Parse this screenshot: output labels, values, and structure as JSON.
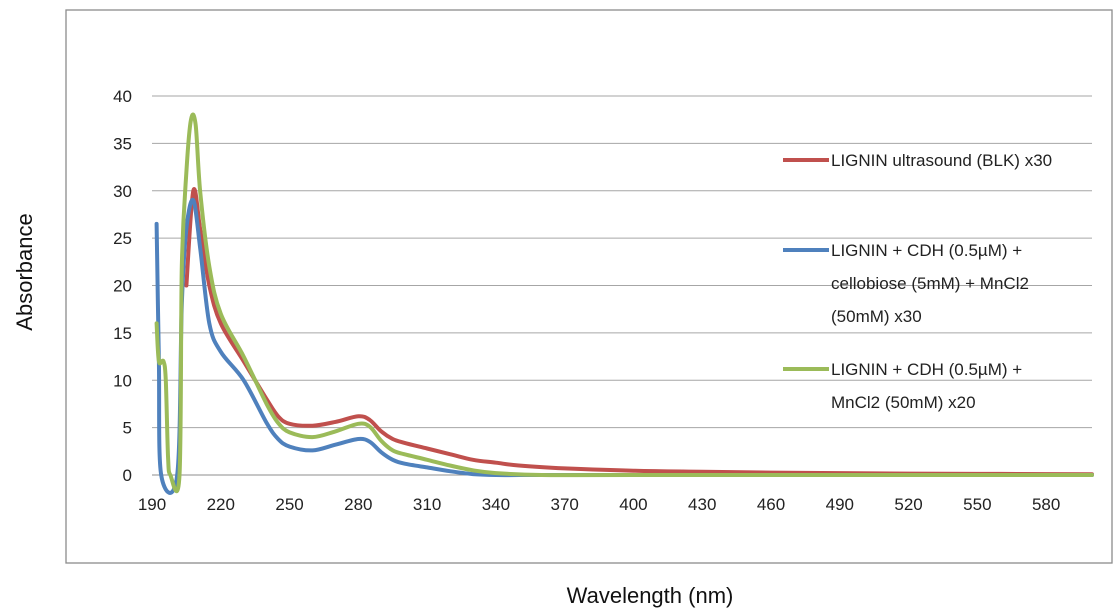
{
  "chart_data": {
    "type": "line",
    "title": "",
    "xlabel": "Wavelength (nm)",
    "ylabel": "Absorbance",
    "xlim": [
      190,
      600
    ],
    "ylim": [
      0,
      40
    ],
    "x_ticks": [
      "190",
      "220",
      "250",
      "280",
      "310",
      "340",
      "370",
      "400",
      "430",
      "460",
      "490",
      "520",
      "550",
      "580"
    ],
    "y_ticks": [
      "0",
      "5",
      "10",
      "15",
      "20",
      "25",
      "30",
      "35",
      "40"
    ],
    "grid": "horizontal",
    "legend_position": "right",
    "series": [
      {
        "name": "LIGNIN ultrasound (BLK) x30",
        "color": "#C0504D",
        "points": [
          [
            205,
            20
          ],
          [
            208,
            30
          ],
          [
            211,
            26
          ],
          [
            215,
            20
          ],
          [
            220,
            16
          ],
          [
            230,
            12
          ],
          [
            240,
            8
          ],
          [
            245,
            6.2
          ],
          [
            250,
            5.4
          ],
          [
            260,
            5.2
          ],
          [
            270,
            5.6
          ],
          [
            280,
            6.2
          ],
          [
            285,
            5.8
          ],
          [
            290,
            4.6
          ],
          [
            295,
            3.8
          ],
          [
            300,
            3.4
          ],
          [
            310,
            2.8
          ],
          [
            320,
            2.2
          ],
          [
            330,
            1.6
          ],
          [
            340,
            1.3
          ],
          [
            350,
            1.0
          ],
          [
            370,
            0.7
          ],
          [
            400,
            0.45
          ],
          [
            430,
            0.35
          ],
          [
            460,
            0.25
          ],
          [
            490,
            0.2
          ],
          [
            520,
            0.15
          ],
          [
            550,
            0.12
          ],
          [
            580,
            0.1
          ],
          [
            600,
            0.08
          ]
        ]
      },
      {
        "name": "LIGNIN + CDH (0.5µM) + cellobiose (5mM) + MnCl2 (50mM) x30",
        "color": "#4F81BD",
        "points": [
          [
            192,
            26.5
          ],
          [
            193,
            12
          ],
          [
            194,
            0
          ],
          [
            201,
            0
          ],
          [
            203,
            18
          ],
          [
            205,
            26
          ],
          [
            208,
            29
          ],
          [
            211,
            24
          ],
          [
            215,
            16
          ],
          [
            220,
            13
          ],
          [
            230,
            10
          ],
          [
            240,
            5.5
          ],
          [
            245,
            3.8
          ],
          [
            250,
            3.0
          ],
          [
            260,
            2.6
          ],
          [
            270,
            3.2
          ],
          [
            280,
            3.8
          ],
          [
            285,
            3.5
          ],
          [
            290,
            2.4
          ],
          [
            295,
            1.6
          ],
          [
            300,
            1.2
          ],
          [
            310,
            0.8
          ],
          [
            320,
            0.4
          ],
          [
            330,
            0.1
          ],
          [
            340,
            0
          ],
          [
            360,
            0
          ],
          [
            400,
            0
          ],
          [
            600,
            0
          ]
        ]
      },
      {
        "name": "LIGNIN + CDH (0.5µM) + MnCl2 (50mM) x20",
        "color": "#9BBB59",
        "points": [
          [
            192,
            16
          ],
          [
            193,
            12
          ],
          [
            195,
            12
          ],
          [
            196,
            10
          ],
          [
            197,
            2
          ],
          [
            198,
            0
          ],
          [
            202,
            0
          ],
          [
            203,
            22
          ],
          [
            205,
            32
          ],
          [
            207,
            37.5
          ],
          [
            209,
            37
          ],
          [
            211,
            30
          ],
          [
            215,
            22
          ],
          [
            220,
            17
          ],
          [
            230,
            12.5
          ],
          [
            240,
            7.5
          ],
          [
            245,
            5.5
          ],
          [
            250,
            4.5
          ],
          [
            260,
            4.0
          ],
          [
            270,
            4.6
          ],
          [
            280,
            5.4
          ],
          [
            285,
            5.1
          ],
          [
            290,
            3.6
          ],
          [
            295,
            2.6
          ],
          [
            300,
            2.2
          ],
          [
            310,
            1.6
          ],
          [
            320,
            1.0
          ],
          [
            330,
            0.5
          ],
          [
            340,
            0.2
          ],
          [
            360,
            0
          ],
          [
            400,
            0
          ],
          [
            600,
            0
          ]
        ]
      }
    ]
  }
}
